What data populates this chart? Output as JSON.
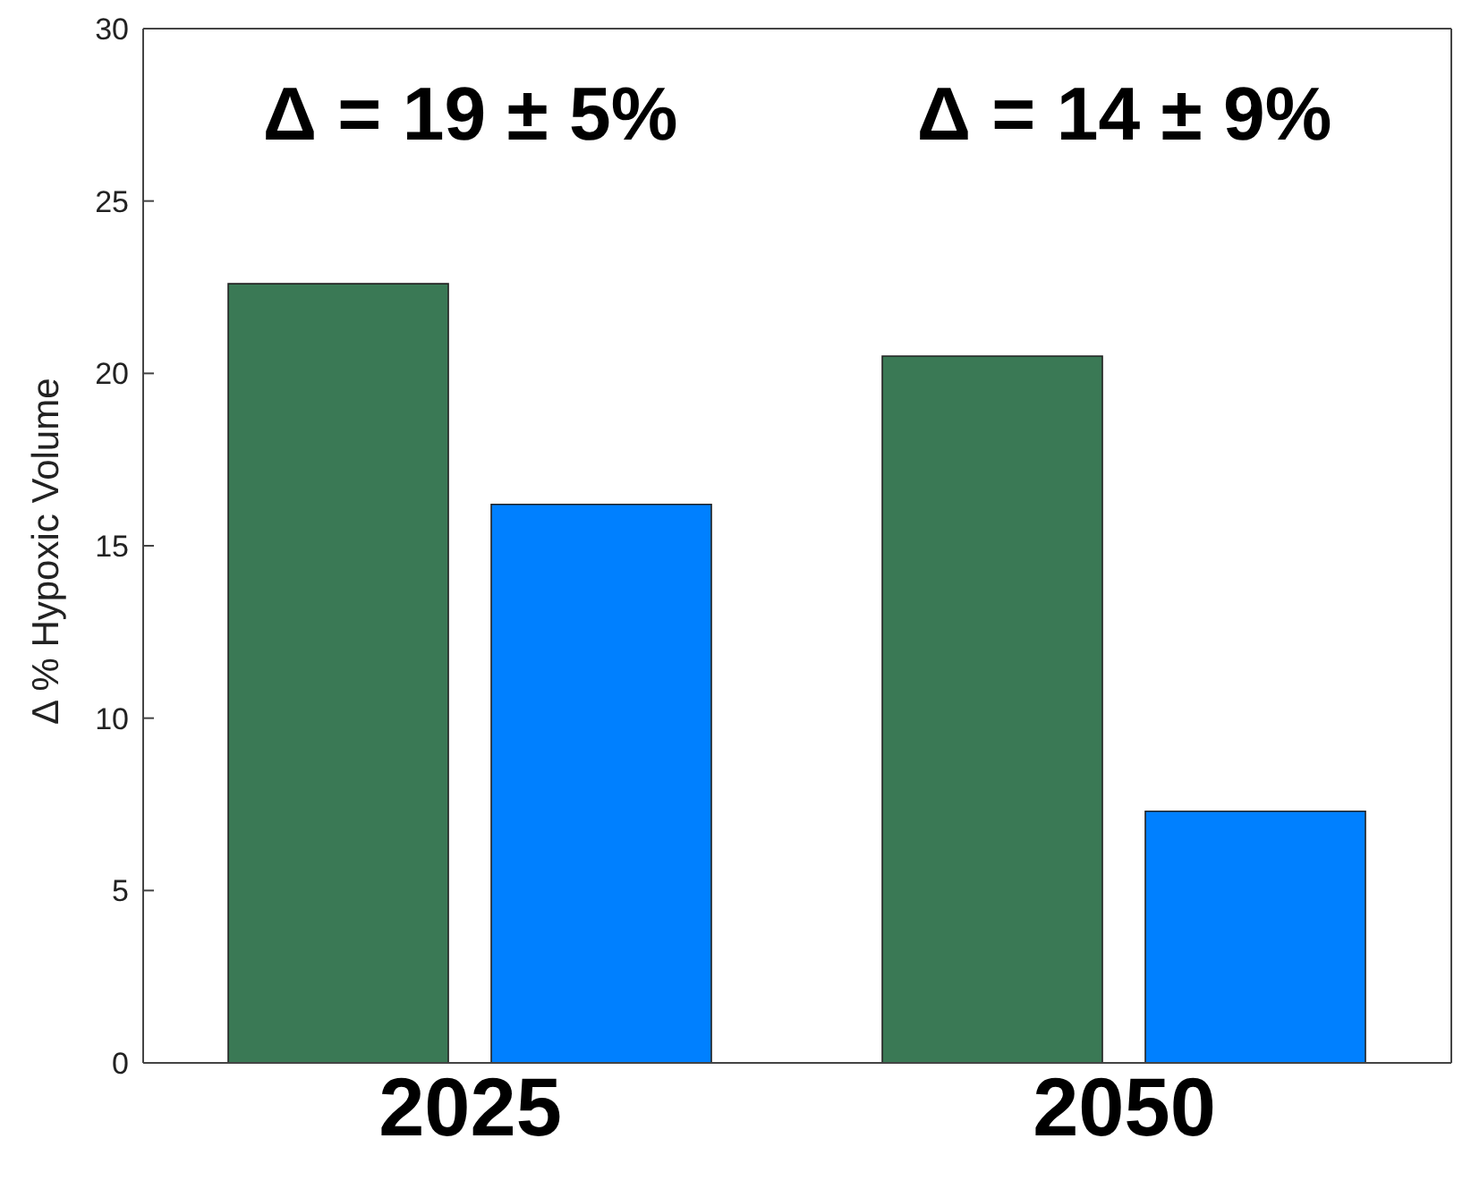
{
  "chart_data": {
    "type": "bar",
    "ylabel": "Δ % Hypoxic Volume",
    "categories": [
      "2025",
      "2050"
    ],
    "series": [
      {
        "color": "#3a7955",
        "values": [
          22.6,
          20.5
        ]
      },
      {
        "color": "#0080ff",
        "values": [
          16.2,
          7.3
        ]
      }
    ],
    "ylim": [
      0,
      30
    ],
    "yticks": [
      0,
      5,
      10,
      15,
      20,
      25,
      30
    ],
    "grid": false,
    "legend": false,
    "annotations": [
      "Δ = 19 ± 5%",
      "Δ = 14 ± 9%"
    ]
  }
}
